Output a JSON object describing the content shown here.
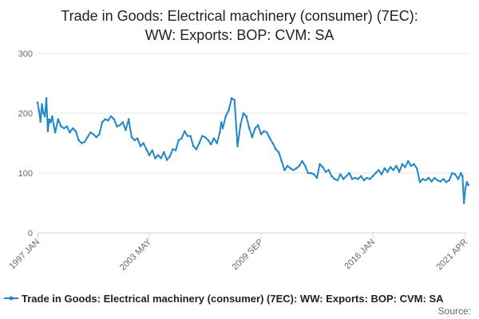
{
  "chart_data": {
    "type": "line",
    "title_lines": [
      "Trade in Goods: Electrical machinery (consumer) (7EC):",
      "WW: Exports: BOP: CVM: SA"
    ],
    "xlabel": "",
    "ylabel": "",
    "ylim": [
      0,
      300
    ],
    "yticks": [
      0,
      100,
      200,
      300
    ],
    "x_range": [
      "1997-01",
      "2021-04"
    ],
    "xticks": [
      {
        "label": "1997 JAN",
        "date": "1997-01"
      },
      {
        "label": "2003 MAY",
        "date": "2003-05"
      },
      {
        "label": "2009 SEP",
        "date": "2009-09"
      },
      {
        "label": "2016 JAN",
        "date": "2016-01"
      },
      {
        "label": "2021 APR",
        "date": "2021-04"
      }
    ],
    "grid": "horizontal",
    "legend_position": "bottom",
    "series": [
      {
        "name": "Trade in Goods: Electrical machinery (consumer) (7EC): WW: Exports: BOP: CVM: SA",
        "color": "#1f88c6",
        "points": [
          [
            "1997-01",
            218
          ],
          [
            "1997-02",
            205
          ],
          [
            "1997-03",
            186
          ],
          [
            "1997-04",
            215
          ],
          [
            "1997-05",
            200
          ],
          [
            "1997-06",
            195
          ],
          [
            "1997-07",
            225
          ],
          [
            "1997-08",
            170
          ],
          [
            "1997-09",
            190
          ],
          [
            "1997-10",
            185
          ],
          [
            "1997-11",
            195
          ],
          [
            "1997-12",
            180
          ],
          [
            "1998-01",
            168
          ],
          [
            "1998-03",
            190
          ],
          [
            "1998-05",
            178
          ],
          [
            "1998-07",
            175
          ],
          [
            "1998-09",
            178
          ],
          [
            "1998-11",
            168
          ],
          [
            "1999-01",
            175
          ],
          [
            "1999-03",
            170
          ],
          [
            "1999-05",
            155
          ],
          [
            "1999-07",
            150
          ],
          [
            "1999-09",
            152
          ],
          [
            "1999-11",
            160
          ],
          [
            "2000-01",
            168
          ],
          [
            "2000-03",
            165
          ],
          [
            "2000-05",
            160
          ],
          [
            "2000-07",
            165
          ],
          [
            "2000-09",
            185
          ],
          [
            "2000-11",
            190
          ],
          [
            "2001-01",
            188
          ],
          [
            "2001-03",
            195
          ],
          [
            "2001-05",
            190
          ],
          [
            "2001-07",
            178
          ],
          [
            "2001-09",
            180
          ],
          [
            "2001-11",
            185
          ],
          [
            "2002-01",
            172
          ],
          [
            "2002-03",
            190
          ],
          [
            "2002-05",
            160
          ],
          [
            "2002-07",
            155
          ],
          [
            "2002-09",
            158
          ],
          [
            "2002-11",
            145
          ],
          [
            "2003-01",
            150
          ],
          [
            "2003-03",
            140
          ],
          [
            "2003-05",
            130
          ],
          [
            "2003-07",
            138
          ],
          [
            "2003-09",
            125
          ],
          [
            "2003-11",
            130
          ],
          [
            "2004-01",
            125
          ],
          [
            "2004-03",
            135
          ],
          [
            "2004-05",
            122
          ],
          [
            "2004-07",
            128
          ],
          [
            "2004-09",
            140
          ],
          [
            "2004-11",
            138
          ],
          [
            "2005-01",
            155
          ],
          [
            "2005-03",
            158
          ],
          [
            "2005-05",
            170
          ],
          [
            "2005-07",
            162
          ],
          [
            "2005-09",
            162
          ],
          [
            "2005-11",
            145
          ],
          [
            "2006-01",
            140
          ],
          [
            "2006-03",
            150
          ],
          [
            "2006-05",
            162
          ],
          [
            "2006-07",
            160
          ],
          [
            "2006-09",
            155
          ],
          [
            "2006-11",
            148
          ],
          [
            "2007-01",
            158
          ],
          [
            "2007-03",
            150
          ],
          [
            "2007-05",
            168
          ],
          [
            "2007-06",
            185
          ],
          [
            "2007-07",
            175
          ],
          [
            "2007-09",
            195
          ],
          [
            "2007-11",
            205
          ],
          [
            "2008-01",
            225
          ],
          [
            "2008-03",
            222
          ],
          [
            "2008-05",
            145
          ],
          [
            "2008-07",
            180
          ],
          [
            "2008-09",
            200
          ],
          [
            "2008-11",
            195
          ],
          [
            "2009-01",
            175
          ],
          [
            "2009-03",
            160
          ],
          [
            "2009-05",
            175
          ],
          [
            "2009-07",
            180
          ],
          [
            "2009-09",
            165
          ],
          [
            "2009-11",
            170
          ],
          [
            "2010-01",
            168
          ],
          [
            "2010-03",
            158
          ],
          [
            "2010-05",
            150
          ],
          [
            "2010-07",
            140
          ],
          [
            "2010-09",
            135
          ],
          [
            "2010-11",
            120
          ],
          [
            "2011-01",
            105
          ],
          [
            "2011-03",
            112
          ],
          [
            "2011-05",
            108
          ],
          [
            "2011-07",
            105
          ],
          [
            "2011-09",
            108
          ],
          [
            "2011-11",
            112
          ],
          [
            "2012-01",
            120
          ],
          [
            "2012-03",
            112
          ],
          [
            "2012-05",
            100
          ],
          [
            "2012-07",
            100
          ],
          [
            "2012-09",
            98
          ],
          [
            "2012-11",
            92
          ],
          [
            "2013-01",
            115
          ],
          [
            "2013-03",
            110
          ],
          [
            "2013-05",
            102
          ],
          [
            "2013-07",
            105
          ],
          [
            "2013-09",
            95
          ],
          [
            "2013-11",
            90
          ],
          [
            "2014-01",
            88
          ],
          [
            "2014-03",
            98
          ],
          [
            "2014-05",
            90
          ],
          [
            "2014-07",
            95
          ],
          [
            "2014-09",
            100
          ],
          [
            "2014-11",
            90
          ],
          [
            "2015-01",
            92
          ],
          [
            "2015-03",
            90
          ],
          [
            "2015-05",
            95
          ],
          [
            "2015-07",
            88
          ],
          [
            "2015-09",
            92
          ],
          [
            "2015-11",
            90
          ],
          [
            "2016-01",
            95
          ],
          [
            "2016-03",
            100
          ],
          [
            "2016-05",
            105
          ],
          [
            "2016-07",
            98
          ],
          [
            "2016-09",
            108
          ],
          [
            "2016-11",
            102
          ],
          [
            "2017-01",
            110
          ],
          [
            "2017-03",
            105
          ],
          [
            "2017-05",
            112
          ],
          [
            "2017-07",
            102
          ],
          [
            "2017-09",
            115
          ],
          [
            "2017-11",
            110
          ],
          [
            "2018-01",
            120
          ],
          [
            "2018-03",
            112
          ],
          [
            "2018-05",
            115
          ],
          [
            "2018-07",
            108
          ],
          [
            "2018-09",
            85
          ],
          [
            "2018-11",
            90
          ],
          [
            "2019-01",
            88
          ],
          [
            "2019-03",
            92
          ],
          [
            "2019-05",
            86
          ],
          [
            "2019-07",
            92
          ],
          [
            "2019-09",
            88
          ],
          [
            "2019-11",
            86
          ],
          [
            "2020-01",
            90
          ],
          [
            "2020-03",
            85
          ],
          [
            "2020-05",
            88
          ],
          [
            "2020-07",
            100
          ],
          [
            "2020-09",
            98
          ],
          [
            "2020-11",
            90
          ],
          [
            "2021-01",
            100
          ],
          [
            "2021-02",
            95
          ],
          [
            "2021-03",
            50
          ],
          [
            "2021-04",
            75
          ],
          [
            "2021-05",
            85
          ],
          [
            "2021-06",
            80
          ]
        ]
      }
    ]
  },
  "source": {
    "label": "Source:"
  }
}
